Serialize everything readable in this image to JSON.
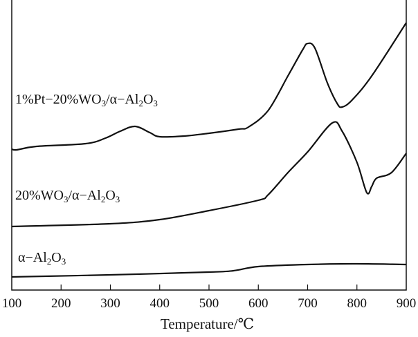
{
  "chart_data": {
    "type": "line",
    "xlabel": "Temperature/℃",
    "ylabel": "",
    "xlim": [
      100,
      900
    ],
    "ylim": [
      0,
      420
    ],
    "y_units": "arbitrary (no y-axis scale printed)",
    "xticks": [
      100,
      200,
      300,
      400,
      500,
      600,
      700,
      800,
      900
    ],
    "grid": false,
    "series": [
      {
        "name": "1%Pt−20%WO3/α−Al2O3",
        "x": [
          100,
          110,
          150,
          250,
          290,
          320,
          350,
          380,
          400,
          450,
          500,
          560,
          580,
          620,
          660,
          690,
          700,
          715,
          740,
          760,
          770,
          790,
          830,
          900
        ],
        "y": [
          204,
          203,
          208,
          212,
          220,
          230,
          237,
          228,
          222,
          223,
          227,
          233,
          236,
          260,
          310,
          348,
          357,
          350,
          300,
          270,
          265,
          275,
          310,
          387
        ]
      },
      {
        "name": "20%WO3/α−Al2O3",
        "x": [
          100,
          300,
          400,
          500,
          600,
          620,
          660,
          700,
          750,
          770,
          800,
          820,
          830,
          840,
          870,
          900
        ],
        "y": [
          92,
          96,
          102,
          115,
          130,
          138,
          170,
          200,
          242,
          230,
          185,
          141,
          150,
          162,
          170,
          198
        ]
      },
      {
        "name": "α−Al2O3",
        "x": [
          100,
          300,
          500,
          550,
          600,
          700,
          800,
          900
        ],
        "y": [
          19,
          22,
          26,
          28,
          34,
          37,
          38,
          37
        ]
      }
    ],
    "color": "#111111"
  }
}
